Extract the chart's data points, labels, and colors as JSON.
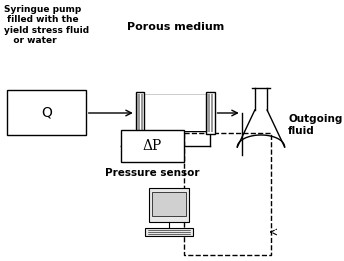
{
  "bg_color": "#ffffff",
  "line_color": "#000000",
  "gray_color": "#aaaaaa",
  "labels": {
    "syringe_pump": "Syringue pump\n filled with the\nyield stress fluid\n   or water",
    "porous_medium": "Porous medium",
    "pressure_sensor": "Pressure sensor",
    "outgoing_fluid": "Outgoing\nfluid",
    "Q": "Q",
    "deltaP": "ΔP"
  },
  "fig_size": [
    3.44,
    2.61
  ],
  "dpi": 100
}
